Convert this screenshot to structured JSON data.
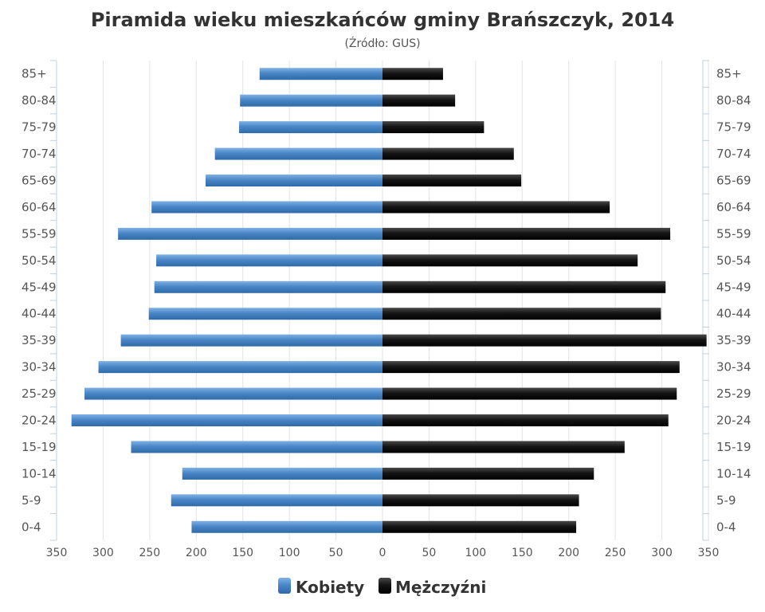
{
  "chart_data": {
    "type": "bar",
    "orientation": "horizontal",
    "title": "Piramida wieku mieszkańców gminy Brańszczyk, 2014",
    "subtitle": "(Źródło: GUS)",
    "categories": [
      "0-4",
      "5-9",
      "10-14",
      "15-19",
      "20-24",
      "25-29",
      "30-34",
      "35-39",
      "40-44",
      "45-49",
      "50-54",
      "55-59",
      "60-64",
      "65-69",
      "70-74",
      "75-79",
      "80-84",
      "85+"
    ],
    "series": [
      {
        "name": "Kobiety",
        "color": "#4a86c6",
        "side": "left",
        "values": [
          205,
          227,
          215,
          270,
          334,
          320,
          305,
          281,
          251,
          245,
          243,
          284,
          248,
          190,
          180,
          154,
          153,
          132
        ]
      },
      {
        "name": "Mężczyźni",
        "color": "#111111",
        "side": "right",
        "values": [
          208,
          211,
          227,
          260,
          307,
          316,
          319,
          348,
          299,
          304,
          274,
          309,
          244,
          149,
          141,
          109,
          78,
          65
        ]
      }
    ],
    "xlim": [
      -350,
      350
    ],
    "ticks": [
      -350,
      -300,
      -250,
      -200,
      -150,
      -100,
      -50,
      0,
      50,
      100,
      150,
      200,
      250,
      300,
      350
    ],
    "tick_labels": [
      "350",
      "300",
      "250",
      "200",
      "150",
      "100",
      "50",
      "0",
      "50",
      "100",
      "150",
      "200",
      "250",
      "300",
      "350"
    ],
    "grid": "vertical",
    "legend_position": "bottom"
  }
}
